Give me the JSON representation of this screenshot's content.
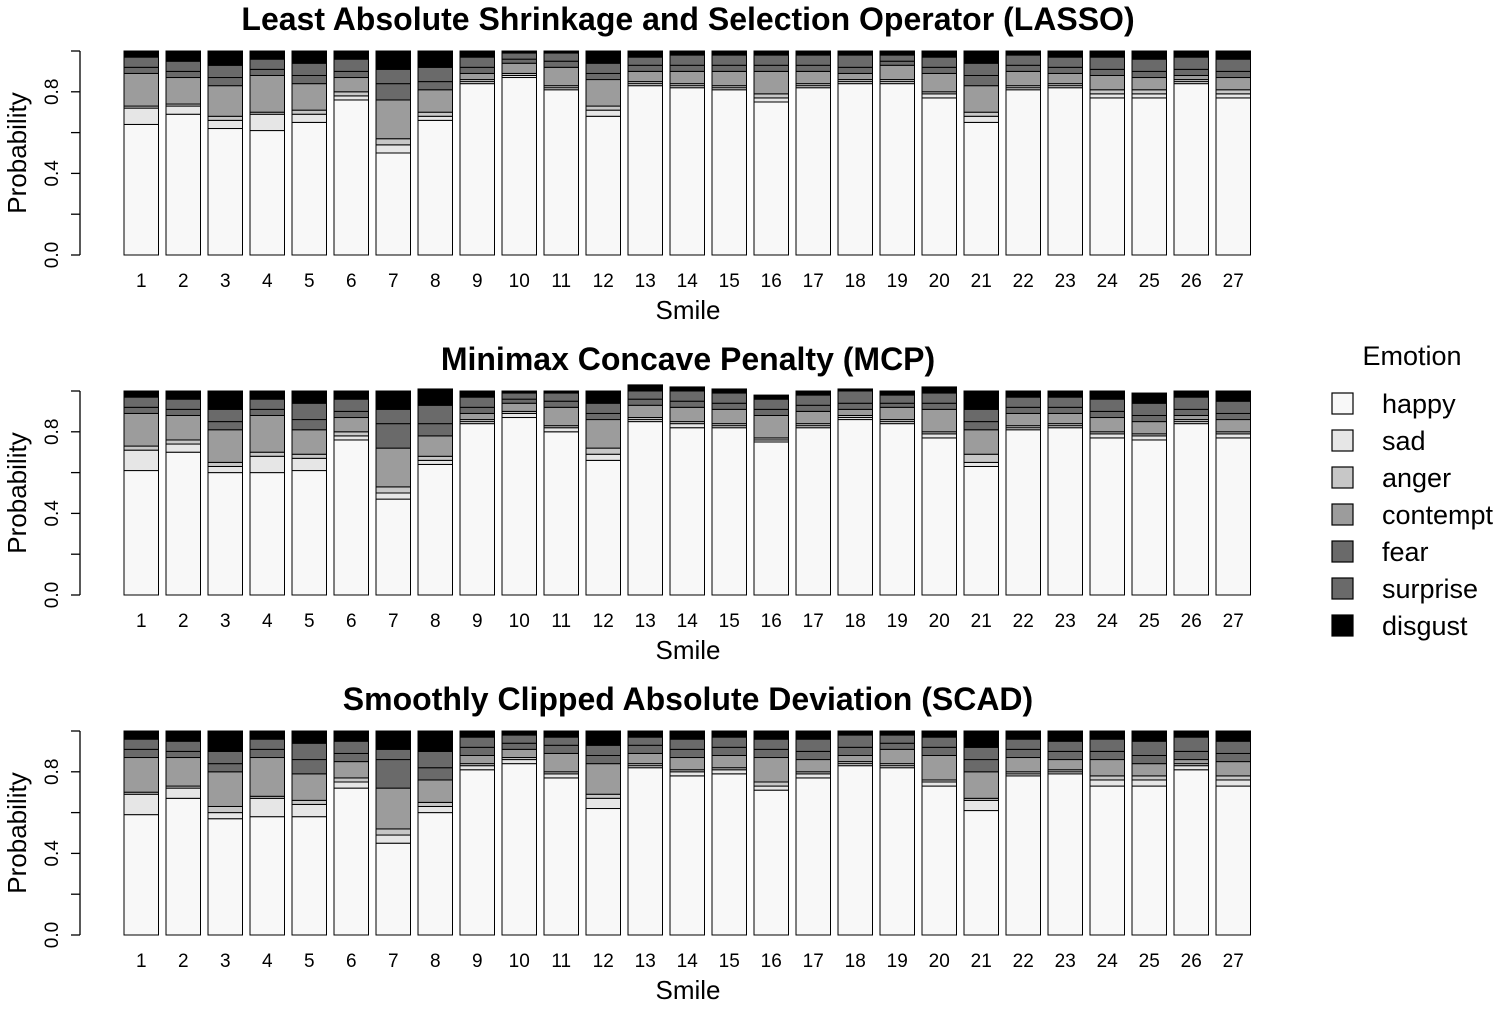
{
  "chart_data": {
    "type": "bar",
    "stacked": true,
    "categories": [
      "1",
      "2",
      "3",
      "4",
      "5",
      "6",
      "7",
      "8",
      "9",
      "10",
      "11",
      "12",
      "13",
      "14",
      "15",
      "16",
      "17",
      "18",
      "19",
      "20",
      "21",
      "22",
      "23",
      "24",
      "25",
      "26",
      "27"
    ],
    "ylim": [
      0,
      1
    ],
    "yticks": [
      "0.0",
      "0.4",
      "0.8"
    ],
    "xlabel": "Smile",
    "ylabel": "Probability",
    "legend": {
      "title": "Emotion",
      "position": "right",
      "items": [
        {
          "name": "happy",
          "color": "#f8f8f8"
        },
        {
          "name": "sad",
          "color": "#e6e6e6"
        },
        {
          "name": "anger",
          "color": "#c7c7c7"
        },
        {
          "name": "contempt",
          "color": "#9c9c9c"
        },
        {
          "name": "fear",
          "color": "#6a6a6a"
        },
        {
          "name": "surprise",
          "color": "#6a6a6a"
        },
        {
          "name": "disgust",
          "color": "#000000"
        }
      ]
    },
    "panels": [
      {
        "title": "Least Absolute Shrinkage and Selection Operator (LASSO)",
        "series": [
          {
            "name": "happy",
            "values": [
              0.64,
              0.69,
              0.62,
              0.61,
              0.65,
              0.76,
              0.5,
              0.66,
              0.84,
              0.87,
              0.81,
              0.68,
              0.83,
              0.82,
              0.81,
              0.75,
              0.82,
              0.84,
              0.84,
              0.77,
              0.65,
              0.81,
              0.82,
              0.77,
              0.77,
              0.84,
              0.77
            ]
          },
          {
            "name": "sad",
            "values": [
              0.08,
              0.04,
              0.04,
              0.08,
              0.04,
              0.02,
              0.04,
              0.02,
              0.01,
              0.01,
              0.01,
              0.03,
              0.01,
              0.01,
              0.01,
              0.02,
              0.01,
              0.01,
              0.01,
              0.02,
              0.03,
              0.01,
              0.01,
              0.02,
              0.02,
              0.01,
              0.02
            ]
          },
          {
            "name": "anger",
            "values": [
              0.01,
              0.01,
              0.02,
              0.01,
              0.02,
              0.02,
              0.03,
              0.02,
              0.01,
              0.01,
              0.01,
              0.02,
              0.01,
              0.01,
              0.01,
              0.02,
              0.01,
              0.01,
              0.01,
              0.01,
              0.02,
              0.01,
              0.01,
              0.02,
              0.02,
              0.01,
              0.02
            ]
          },
          {
            "name": "contempt",
            "values": [
              0.16,
              0.13,
              0.15,
              0.18,
              0.13,
              0.07,
              0.19,
              0.11,
              0.03,
              0.05,
              0.09,
              0.13,
              0.05,
              0.06,
              0.07,
              0.11,
              0.06,
              0.03,
              0.07,
              0.09,
              0.13,
              0.07,
              0.05,
              0.07,
              0.06,
              0.02,
              0.06
            ]
          },
          {
            "name": "fear",
            "values": [
              0.03,
              0.03,
              0.04,
              0.03,
              0.04,
              0.03,
              0.08,
              0.04,
              0.03,
              0.02,
              0.03,
              0.03,
              0.03,
              0.03,
              0.03,
              0.03,
              0.03,
              0.03,
              0.02,
              0.03,
              0.05,
              0.03,
              0.03,
              0.03,
              0.03,
              0.03,
              0.03
            ]
          },
          {
            "name": "surprise",
            "values": [
              0.05,
              0.05,
              0.06,
              0.05,
              0.06,
              0.06,
              0.07,
              0.07,
              0.05,
              0.03,
              0.04,
              0.05,
              0.04,
              0.05,
              0.05,
              0.05,
              0.05,
              0.06,
              0.03,
              0.05,
              0.06,
              0.05,
              0.05,
              0.06,
              0.06,
              0.06,
              0.06
            ]
          },
          {
            "name": "disgust",
            "values": [
              0.03,
              0.05,
              0.07,
              0.04,
              0.06,
              0.04,
              0.09,
              0.08,
              0.03,
              0.01,
              0.01,
              0.06,
              0.03,
              0.02,
              0.02,
              0.02,
              0.02,
              0.02,
              0.02,
              0.03,
              0.06,
              0.02,
              0.03,
              0.03,
              0.04,
              0.03,
              0.04
            ]
          }
        ]
      },
      {
        "title": "Minimax Concave Penalty (MCP)",
        "series": [
          {
            "name": "happy",
            "values": [
              0.61,
              0.7,
              0.6,
              0.6,
              0.61,
              0.76,
              0.47,
              0.64,
              0.84,
              0.87,
              0.8,
              0.66,
              0.85,
              0.82,
              0.82,
              0.75,
              0.82,
              0.86,
              0.84,
              0.77,
              0.63,
              0.81,
              0.82,
              0.77,
              0.76,
              0.84,
              0.77
            ]
          },
          {
            "name": "sad",
            "values": [
              0.1,
              0.04,
              0.03,
              0.08,
              0.06,
              0.02,
              0.03,
              0.02,
              0.01,
              0.02,
              0.02,
              0.03,
              0.01,
              0.02,
              0.01,
              0.01,
              0.01,
              0.01,
              0.01,
              0.02,
              0.02,
              0.01,
              0.01,
              0.02,
              0.02,
              0.01,
              0.02
            ]
          },
          {
            "name": "anger",
            "values": [
              0.02,
              0.02,
              0.02,
              0.02,
              0.02,
              0.02,
              0.03,
              0.02,
              0.01,
              0.01,
              0.01,
              0.03,
              0.01,
              0.01,
              0.01,
              0.01,
              0.01,
              0.01,
              0.01,
              0.01,
              0.04,
              0.01,
              0.01,
              0.01,
              0.01,
              0.01,
              0.01
            ]
          },
          {
            "name": "contempt",
            "values": [
              0.16,
              0.12,
              0.16,
              0.18,
              0.12,
              0.07,
              0.19,
              0.1,
              0.03,
              0.04,
              0.09,
              0.14,
              0.06,
              0.07,
              0.07,
              0.11,
              0.06,
              0.03,
              0.06,
              0.11,
              0.12,
              0.06,
              0.05,
              0.07,
              0.06,
              0.02,
              0.06
            ]
          },
          {
            "name": "fear",
            "values": [
              0.03,
              0.03,
              0.04,
              0.03,
              0.05,
              0.03,
              0.12,
              0.06,
              0.03,
              0.02,
              0.03,
              0.03,
              0.03,
              0.03,
              0.03,
              0.03,
              0.03,
              0.03,
              0.02,
              0.03,
              0.04,
              0.03,
              0.03,
              0.03,
              0.03,
              0.03,
              0.03
            ]
          },
          {
            "name": "surprise",
            "values": [
              0.05,
              0.05,
              0.06,
              0.05,
              0.08,
              0.06,
              0.07,
              0.09,
              0.05,
              0.03,
              0.04,
              0.05,
              0.04,
              0.05,
              0.05,
              0.05,
              0.05,
              0.06,
              0.04,
              0.05,
              0.06,
              0.05,
              0.05,
              0.06,
              0.06,
              0.06,
              0.06
            ]
          },
          {
            "name": "disgust",
            "values": [
              0.03,
              0.04,
              0.09,
              0.04,
              0.06,
              0.04,
              0.09,
              0.08,
              0.03,
              0.01,
              0.01,
              0.06,
              0.03,
              0.02,
              0.02,
              0.02,
              0.02,
              0.01,
              0.02,
              0.03,
              0.09,
              0.03,
              0.03,
              0.04,
              0.05,
              0.03,
              0.05
            ]
          }
        ]
      },
      {
        "title": "Smoothly Clipped Absolute Deviation (SCAD)",
        "series": [
          {
            "name": "happy",
            "values": [
              0.59,
              0.67,
              0.57,
              0.58,
              0.58,
              0.72,
              0.45,
              0.6,
              0.81,
              0.84,
              0.77,
              0.62,
              0.82,
              0.78,
              0.79,
              0.71,
              0.77,
              0.83,
              0.82,
              0.73,
              0.61,
              0.78,
              0.79,
              0.73,
              0.73,
              0.81,
              0.73
            ]
          },
          {
            "name": "sad",
            "values": [
              0.1,
              0.05,
              0.03,
              0.09,
              0.06,
              0.03,
              0.04,
              0.03,
              0.02,
              0.02,
              0.02,
              0.05,
              0.01,
              0.02,
              0.02,
              0.02,
              0.02,
              0.01,
              0.01,
              0.02,
              0.05,
              0.01,
              0.01,
              0.03,
              0.03,
              0.02,
              0.03
            ]
          },
          {
            "name": "anger",
            "values": [
              0.01,
              0.01,
              0.03,
              0.01,
              0.02,
              0.02,
              0.03,
              0.02,
              0.01,
              0.01,
              0.01,
              0.02,
              0.01,
              0.01,
              0.01,
              0.02,
              0.01,
              0.01,
              0.01,
              0.01,
              0.01,
              0.01,
              0.01,
              0.02,
              0.02,
              0.01,
              0.02
            ]
          },
          {
            "name": "contempt",
            "values": [
              0.17,
              0.14,
              0.17,
              0.19,
              0.13,
              0.08,
              0.2,
              0.11,
              0.04,
              0.04,
              0.09,
              0.15,
              0.05,
              0.06,
              0.06,
              0.12,
              0.06,
              0.03,
              0.07,
              0.12,
              0.13,
              0.07,
              0.05,
              0.08,
              0.06,
              0.02,
              0.07
            ]
          },
          {
            "name": "fear",
            "values": [
              0.04,
              0.03,
              0.04,
              0.04,
              0.07,
              0.04,
              0.14,
              0.06,
              0.04,
              0.03,
              0.04,
              0.04,
              0.04,
              0.04,
              0.04,
              0.04,
              0.04,
              0.04,
              0.03,
              0.04,
              0.06,
              0.04,
              0.04,
              0.04,
              0.04,
              0.04,
              0.04
            ]
          },
          {
            "name": "surprise",
            "values": [
              0.05,
              0.05,
              0.06,
              0.05,
              0.08,
              0.06,
              0.05,
              0.08,
              0.05,
              0.04,
              0.04,
              0.05,
              0.04,
              0.05,
              0.05,
              0.05,
              0.06,
              0.06,
              0.04,
              0.05,
              0.06,
              0.05,
              0.05,
              0.06,
              0.07,
              0.07,
              0.06
            ]
          },
          {
            "name": "disgust",
            "values": [
              0.04,
              0.05,
              0.1,
              0.04,
              0.06,
              0.05,
              0.09,
              0.1,
              0.03,
              0.02,
              0.03,
              0.07,
              0.03,
              0.04,
              0.03,
              0.04,
              0.04,
              0.02,
              0.02,
              0.03,
              0.08,
              0.04,
              0.05,
              0.04,
              0.05,
              0.03,
              0.05
            ]
          }
        ]
      }
    ]
  }
}
